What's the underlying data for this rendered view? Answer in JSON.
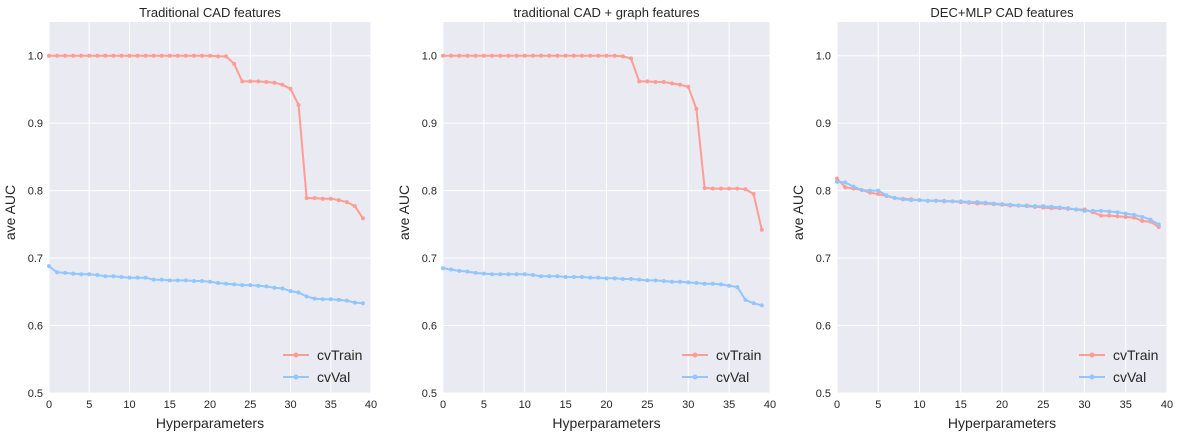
{
  "colors": {
    "background": "#eaeaf2",
    "grid": "#ffffff",
    "train": "#ff9c94",
    "val": "#92c6ff"
  },
  "chart_data": [
    {
      "type": "line",
      "title": "Traditional CAD features",
      "xlabel": "Hyperparameters",
      "ylabel": "ave AUC",
      "xlim": [
        0,
        40
      ],
      "ylim": [
        0.5,
        1.05
      ],
      "xticks": [
        0,
        5,
        10,
        15,
        20,
        25,
        30,
        35,
        40
      ],
      "xtick_labels": [
        "0",
        "5",
        "10",
        "15",
        "20",
        "25",
        "30",
        "35",
        "40"
      ],
      "yticks": [
        0.5,
        0.6,
        0.7,
        0.8,
        0.9,
        1.0
      ],
      "ytick_labels": [
        "0.5",
        "0.6",
        "0.7",
        "0.8",
        "0.9",
        "1.0"
      ],
      "grid": true,
      "legend_position": "bottom-right",
      "x": [
        0,
        1,
        2,
        3,
        4,
        5,
        6,
        7,
        8,
        9,
        10,
        11,
        12,
        13,
        14,
        15,
        16,
        17,
        18,
        19,
        20,
        21,
        22,
        23,
        24,
        25,
        26,
        27,
        28,
        29,
        30,
        31,
        32,
        33,
        34,
        35,
        36,
        37,
        38,
        39
      ],
      "series": [
        {
          "name": "cvTrain",
          "values": [
            1.0,
            1.0,
            1.0,
            1.0,
            1.0,
            1.0,
            1.0,
            1.0,
            1.0,
            1.0,
            1.0,
            1.0,
            1.0,
            1.0,
            1.0,
            1.0,
            1.0,
            1.0,
            1.0,
            1.0,
            1.0,
            0.999,
            0.999,
            0.988,
            0.962,
            0.962,
            0.962,
            0.961,
            0.96,
            0.957,
            0.951,
            0.927,
            0.789,
            0.789,
            0.788,
            0.788,
            0.786,
            0.783,
            0.777,
            0.759
          ]
        },
        {
          "name": "cvVal",
          "values": [
            0.688,
            0.679,
            0.678,
            0.677,
            0.676,
            0.676,
            0.675,
            0.673,
            0.673,
            0.672,
            0.671,
            0.671,
            0.671,
            0.668,
            0.668,
            0.667,
            0.667,
            0.667,
            0.666,
            0.666,
            0.665,
            0.663,
            0.662,
            0.661,
            0.66,
            0.66,
            0.659,
            0.658,
            0.656,
            0.655,
            0.651,
            0.649,
            0.643,
            0.64,
            0.639,
            0.639,
            0.638,
            0.637,
            0.634,
            0.633
          ]
        }
      ]
    },
    {
      "type": "line",
      "title": "traditional CAD + graph features",
      "xlabel": "Hyperparameters",
      "ylabel": "ave AUC",
      "xlim": [
        0,
        40
      ],
      "ylim": [
        0.5,
        1.05
      ],
      "xticks": [
        0,
        5,
        10,
        15,
        20,
        25,
        30,
        35,
        40
      ],
      "xtick_labels": [
        "0",
        "5",
        "10",
        "15",
        "20",
        "25",
        "30",
        "35",
        "40"
      ],
      "yticks": [
        0.5,
        0.6,
        0.7,
        0.8,
        0.9,
        1.0
      ],
      "ytick_labels": [
        "0.5",
        "0.6",
        "0.7",
        "0.8",
        "0.9",
        "1.0"
      ],
      "grid": true,
      "legend_position": "bottom-right",
      "x": [
        0,
        1,
        2,
        3,
        4,
        5,
        6,
        7,
        8,
        9,
        10,
        11,
        12,
        13,
        14,
        15,
        16,
        17,
        18,
        19,
        20,
        21,
        22,
        23,
        24,
        25,
        26,
        27,
        28,
        29,
        30,
        31,
        32,
        33,
        34,
        35,
        36,
        37,
        38,
        39
      ],
      "series": [
        {
          "name": "cvTrain",
          "values": [
            1.0,
            1.0,
            1.0,
            1.0,
            1.0,
            1.0,
            1.0,
            1.0,
            1.0,
            1.0,
            1.0,
            1.0,
            1.0,
            1.0,
            1.0,
            1.0,
            1.0,
            1.0,
            1.0,
            1.0,
            1.0,
            1.0,
            0.999,
            0.996,
            0.962,
            0.962,
            0.961,
            0.961,
            0.959,
            0.957,
            0.954,
            0.921,
            0.804,
            0.803,
            0.803,
            0.803,
            0.803,
            0.802,
            0.795,
            0.742
          ]
        },
        {
          "name": "cvVal",
          "values": [
            0.685,
            0.683,
            0.681,
            0.68,
            0.678,
            0.677,
            0.676,
            0.676,
            0.676,
            0.676,
            0.676,
            0.675,
            0.673,
            0.673,
            0.673,
            0.672,
            0.672,
            0.672,
            0.671,
            0.671,
            0.67,
            0.67,
            0.669,
            0.669,
            0.668,
            0.667,
            0.667,
            0.666,
            0.665,
            0.665,
            0.664,
            0.663,
            0.662,
            0.662,
            0.661,
            0.659,
            0.657,
            0.638,
            0.633,
            0.63
          ]
        }
      ]
    },
    {
      "type": "line",
      "title": "DEC+MLP CAD features",
      "xlabel": "Hyperparameters",
      "ylabel": "ave AUC",
      "xlim": [
        0,
        40
      ],
      "ylim": [
        0.5,
        1.05
      ],
      "xticks": [
        0,
        5,
        10,
        15,
        20,
        25,
        30,
        35,
        40
      ],
      "xtick_labels": [
        "0",
        "5",
        "10",
        "15",
        "20",
        "25",
        "30",
        "35",
        "40"
      ],
      "yticks": [
        0.5,
        0.6,
        0.7,
        0.8,
        0.9,
        1.0
      ],
      "ytick_labels": [
        "0.5",
        "0.6",
        "0.7",
        "0.8",
        "0.9",
        "1.0"
      ],
      "grid": true,
      "legend_position": "bottom-right",
      "x": [
        0,
        1,
        2,
        3,
        4,
        5,
        6,
        7,
        8,
        9,
        10,
        11,
        12,
        13,
        14,
        15,
        16,
        17,
        18,
        19,
        20,
        21,
        22,
        23,
        24,
        25,
        26,
        27,
        28,
        29,
        30,
        31,
        32,
        33,
        34,
        35,
        36,
        37,
        38,
        39
      ],
      "series": [
        {
          "name": "cvTrain",
          "values": [
            0.818,
            0.805,
            0.803,
            0.801,
            0.797,
            0.795,
            0.792,
            0.789,
            0.788,
            0.787,
            0.786,
            0.785,
            0.785,
            0.784,
            0.784,
            0.783,
            0.782,
            0.781,
            0.781,
            0.78,
            0.779,
            0.778,
            0.778,
            0.777,
            0.776,
            0.775,
            0.774,
            0.774,
            0.773,
            0.772,
            0.772,
            0.768,
            0.763,
            0.763,
            0.762,
            0.761,
            0.76,
            0.755,
            0.754,
            0.746
          ]
        },
        {
          "name": "cvVal",
          "values": [
            0.813,
            0.812,
            0.806,
            0.801,
            0.8,
            0.8,
            0.793,
            0.789,
            0.787,
            0.786,
            0.786,
            0.785,
            0.785,
            0.785,
            0.784,
            0.784,
            0.783,
            0.783,
            0.782,
            0.781,
            0.78,
            0.779,
            0.778,
            0.778,
            0.777,
            0.777,
            0.776,
            0.775,
            0.774,
            0.772,
            0.77,
            0.77,
            0.77,
            0.769,
            0.768,
            0.766,
            0.764,
            0.761,
            0.757,
            0.75
          ]
        }
      ]
    }
  ]
}
